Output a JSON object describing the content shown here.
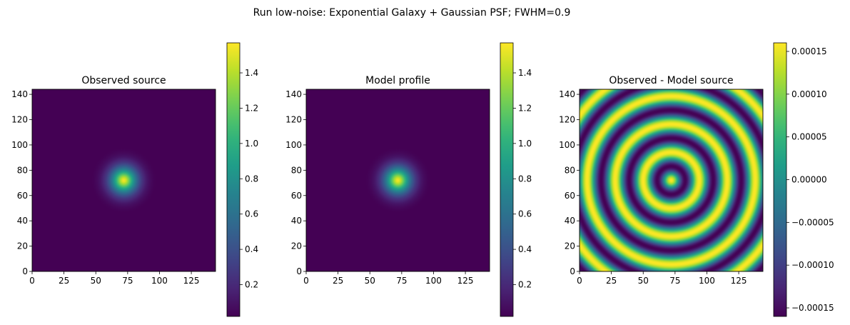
{
  "figure": {
    "suptitle": "Run low-noise: Exponential Galaxy + Gaussian PSF; FWHM=0.9"
  },
  "chart_data": [
    {
      "type": "heatmap",
      "title": "Observed source",
      "xlabel": "",
      "ylabel": "",
      "xlim": [
        0,
        144
      ],
      "ylim": [
        0,
        144
      ],
      "xticks": [
        "0",
        "25",
        "50",
        "75",
        "100",
        "125"
      ],
      "yticks": [
        "0",
        "20",
        "40",
        "60",
        "80",
        "100",
        "120",
        "140"
      ],
      "colormap": "viridis",
      "image": {
        "kind": "exponential",
        "center": [
          72,
          72
        ],
        "peak": 1.55,
        "scale_length": 10
      },
      "colorbar": {
        "vmin": 0.02,
        "vmax": 1.57,
        "ticks": [
          "0.2",
          "0.4",
          "0.6",
          "0.8",
          "1.0",
          "1.2",
          "1.4"
        ]
      }
    },
    {
      "type": "heatmap",
      "title": "Model profile",
      "xlabel": "",
      "ylabel": "",
      "xlim": [
        0,
        144
      ],
      "ylim": [
        0,
        144
      ],
      "xticks": [
        "0",
        "25",
        "50",
        "75",
        "100",
        "125"
      ],
      "yticks": [
        "0",
        "20",
        "40",
        "60",
        "80",
        "100",
        "120",
        "140"
      ],
      "colormap": "viridis",
      "image": {
        "kind": "exponential",
        "center": [
          72,
          72
        ],
        "peak": 1.55,
        "scale_length": 10
      },
      "colorbar": {
        "vmin": 0.02,
        "vmax": 1.57,
        "ticks": [
          "0.2",
          "0.4",
          "0.6",
          "0.8",
          "1.0",
          "1.2",
          "1.4"
        ]
      }
    },
    {
      "type": "heatmap",
      "title": "Observed - Model source",
      "xlabel": "",
      "ylabel": "",
      "xlim": [
        0,
        144
      ],
      "ylim": [
        0,
        144
      ],
      "xticks": [
        "0",
        "25",
        "50",
        "75",
        "100",
        "125"
      ],
      "yticks": [
        "0",
        "20",
        "40",
        "60",
        "80",
        "100",
        "120",
        "140"
      ],
      "colormap": "viridis",
      "image": {
        "kind": "rings",
        "center": [
          72,
          72
        ],
        "amplitude": 0.00016,
        "ring_radii": [
          0,
          22,
          44,
          66,
          88
        ]
      },
      "colorbar": {
        "vmin": -0.00016,
        "vmax": 0.00016,
        "ticks": [
          "−0.00015",
          "−0.00010",
          "−0.00005",
          "0.00000",
          "0.00005",
          "0.00010",
          "0.00015"
        ]
      }
    }
  ]
}
